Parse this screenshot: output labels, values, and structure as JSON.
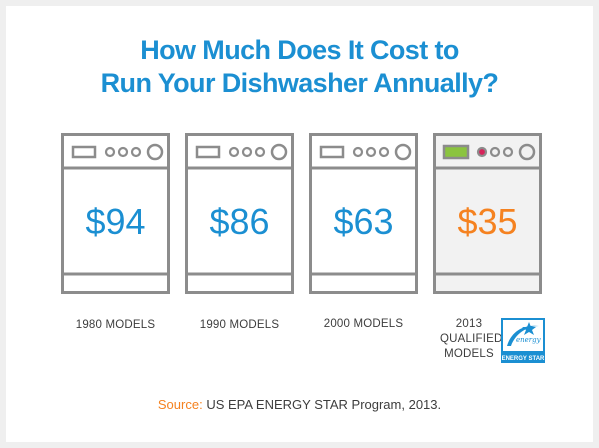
{
  "title_line1": "How Much Does It Cost to",
  "title_line2": "Run Your Dishwasher Annually?",
  "chart_data": {
    "type": "bar",
    "title": "How Much Does It Cost to Run Your Dishwasher Annually?",
    "categories": [
      "1980 MODELS",
      "1990 MODELS",
      "2000 MODELS",
      "2013 QUALIFIED MODELS"
    ],
    "values": [
      94,
      86,
      63,
      35
    ],
    "value_labels": [
      "$94",
      "$86",
      "$63",
      "$35"
    ],
    "unit": "$",
    "xlabel": "",
    "ylabel": ""
  },
  "label_2013": [
    "2013",
    "QUALIFIED",
    "MODELS"
  ],
  "energy_star_logo_text": "ENERGY STAR",
  "source_key": "Source:",
  "source_value": "US EPA ENERGY STAR Program, 2013.",
  "colors": {
    "title": "#1b8fd2",
    "price_old": "#1b8fd2",
    "price_new": "#f58220",
    "outline": "#8c8c8c",
    "panel_new": "#f2f2f2",
    "display_green": "#8bc43f",
    "button_red": "#d6235a"
  },
  "icons": [
    "dishwasher-icon",
    "energy-star-logo"
  ]
}
